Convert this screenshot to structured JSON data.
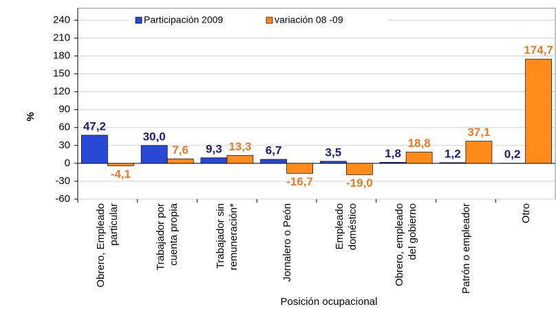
{
  "chart_data": {
    "type": "bar",
    "y_label": "%",
    "x_label": "Posición ocupacional",
    "categories": [
      "Obrero, Empleado particular",
      "Trabajador por cuenta propia",
      "Trabajador sin remuneración*",
      "Jornalero o Peón",
      "Empleado doméstico",
      "Obrero, empleado del gobierno",
      "Patrón o empleador",
      "Otro"
    ],
    "series": [
      {
        "name": "Participación 2009",
        "color": "#2848d8",
        "label_color": "#1c1c7c",
        "values": [
          47.2,
          30.0,
          9.3,
          6.7,
          3.5,
          1.8,
          1.2,
          0.2
        ],
        "value_labels": [
          "47,2",
          "30,0",
          "9,3",
          "6,7",
          "3,5",
          "1,8",
          "1,2",
          "0,2"
        ]
      },
      {
        "name": "variación 08 -09",
        "color": "#ff8c1a",
        "label_color": "#f07820",
        "values": [
          -4.1,
          7.6,
          13.3,
          -16.7,
          -19.0,
          18.8,
          37.1,
          174.7
        ],
        "value_labels": [
          "-4,1",
          "7,6",
          "13,3",
          "-16,7",
          "-19,0",
          "18,8",
          "37,1",
          "174,7"
        ]
      }
    ],
    "ylim": [
      -60,
      260
    ],
    "yticks": [
      -60,
      -30,
      0,
      30,
      60,
      90,
      120,
      150,
      180,
      210,
      240
    ],
    "grid": true
  }
}
